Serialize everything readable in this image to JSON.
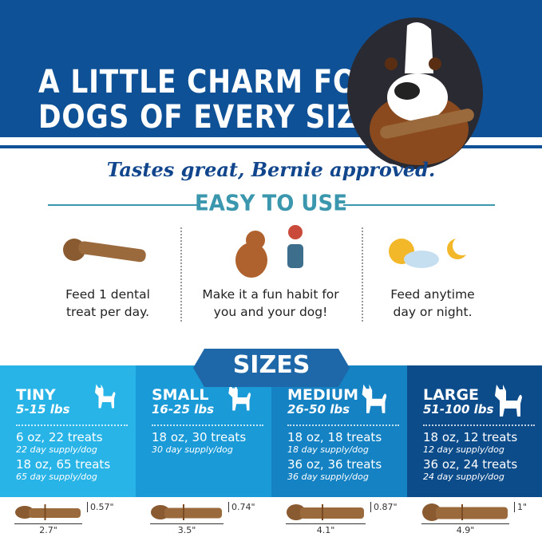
{
  "header": {
    "title_line1": "A LITTLE CHARM FOR",
    "title_line2": "DOGS OF EVERY SIZE"
  },
  "tagline": "Tastes great, Bernie approved.",
  "easy": {
    "heading": "EASY TO USE",
    "steps": [
      {
        "icon": "dental-treat-icon",
        "line1": "Feed 1 dental",
        "line2": "treat per day."
      },
      {
        "icon": "dog-high-five-icon",
        "line1": "Make it a fun habit for",
        "line2": "you and your dog!"
      },
      {
        "icon": "sun-moon-icon",
        "line1": "Feed anytime",
        "line2": "day or night."
      }
    ]
  },
  "sizes": {
    "heading": "SIZES",
    "columns": [
      {
        "name": "TINY",
        "weight": "5-15 lbs",
        "color": "#29b4e8",
        "packs": [
          {
            "pack": "6 oz, 22 treats",
            "supply": "22 day supply/dog"
          },
          {
            "pack": "18 oz, 65 treats",
            "supply": "65 day supply/dog"
          }
        ],
        "length": "2.7\"",
        "height": "0.57\""
      },
      {
        "name": "SMALL",
        "weight": "16-25 lbs",
        "color": "#1a9bd8",
        "packs": [
          {
            "pack": "18 oz, 30 treats",
            "supply": "30 day supply/dog"
          }
        ],
        "length": "3.5\"",
        "height": "0.74\""
      },
      {
        "name": "MEDIUM",
        "weight": "26-50 lbs",
        "color": "#1482c3",
        "packs": [
          {
            "pack": "18 oz, 18 treats",
            "supply": "18 day supply/dog"
          },
          {
            "pack": "36 oz, 36 treats",
            "supply": "36 day supply/dog"
          }
        ],
        "length": "4.1\"",
        "height": "0.87\""
      },
      {
        "name": "LARGE",
        "weight": "51-100 lbs",
        "color": "#0c4c8b",
        "packs": [
          {
            "pack": "18 oz, 12 treats",
            "supply": "12 day supply/dog"
          },
          {
            "pack": "36 oz, 24 treats",
            "supply": "24 day supply/dog"
          }
        ],
        "length": "4.9\"",
        "height": "1\""
      }
    ]
  }
}
